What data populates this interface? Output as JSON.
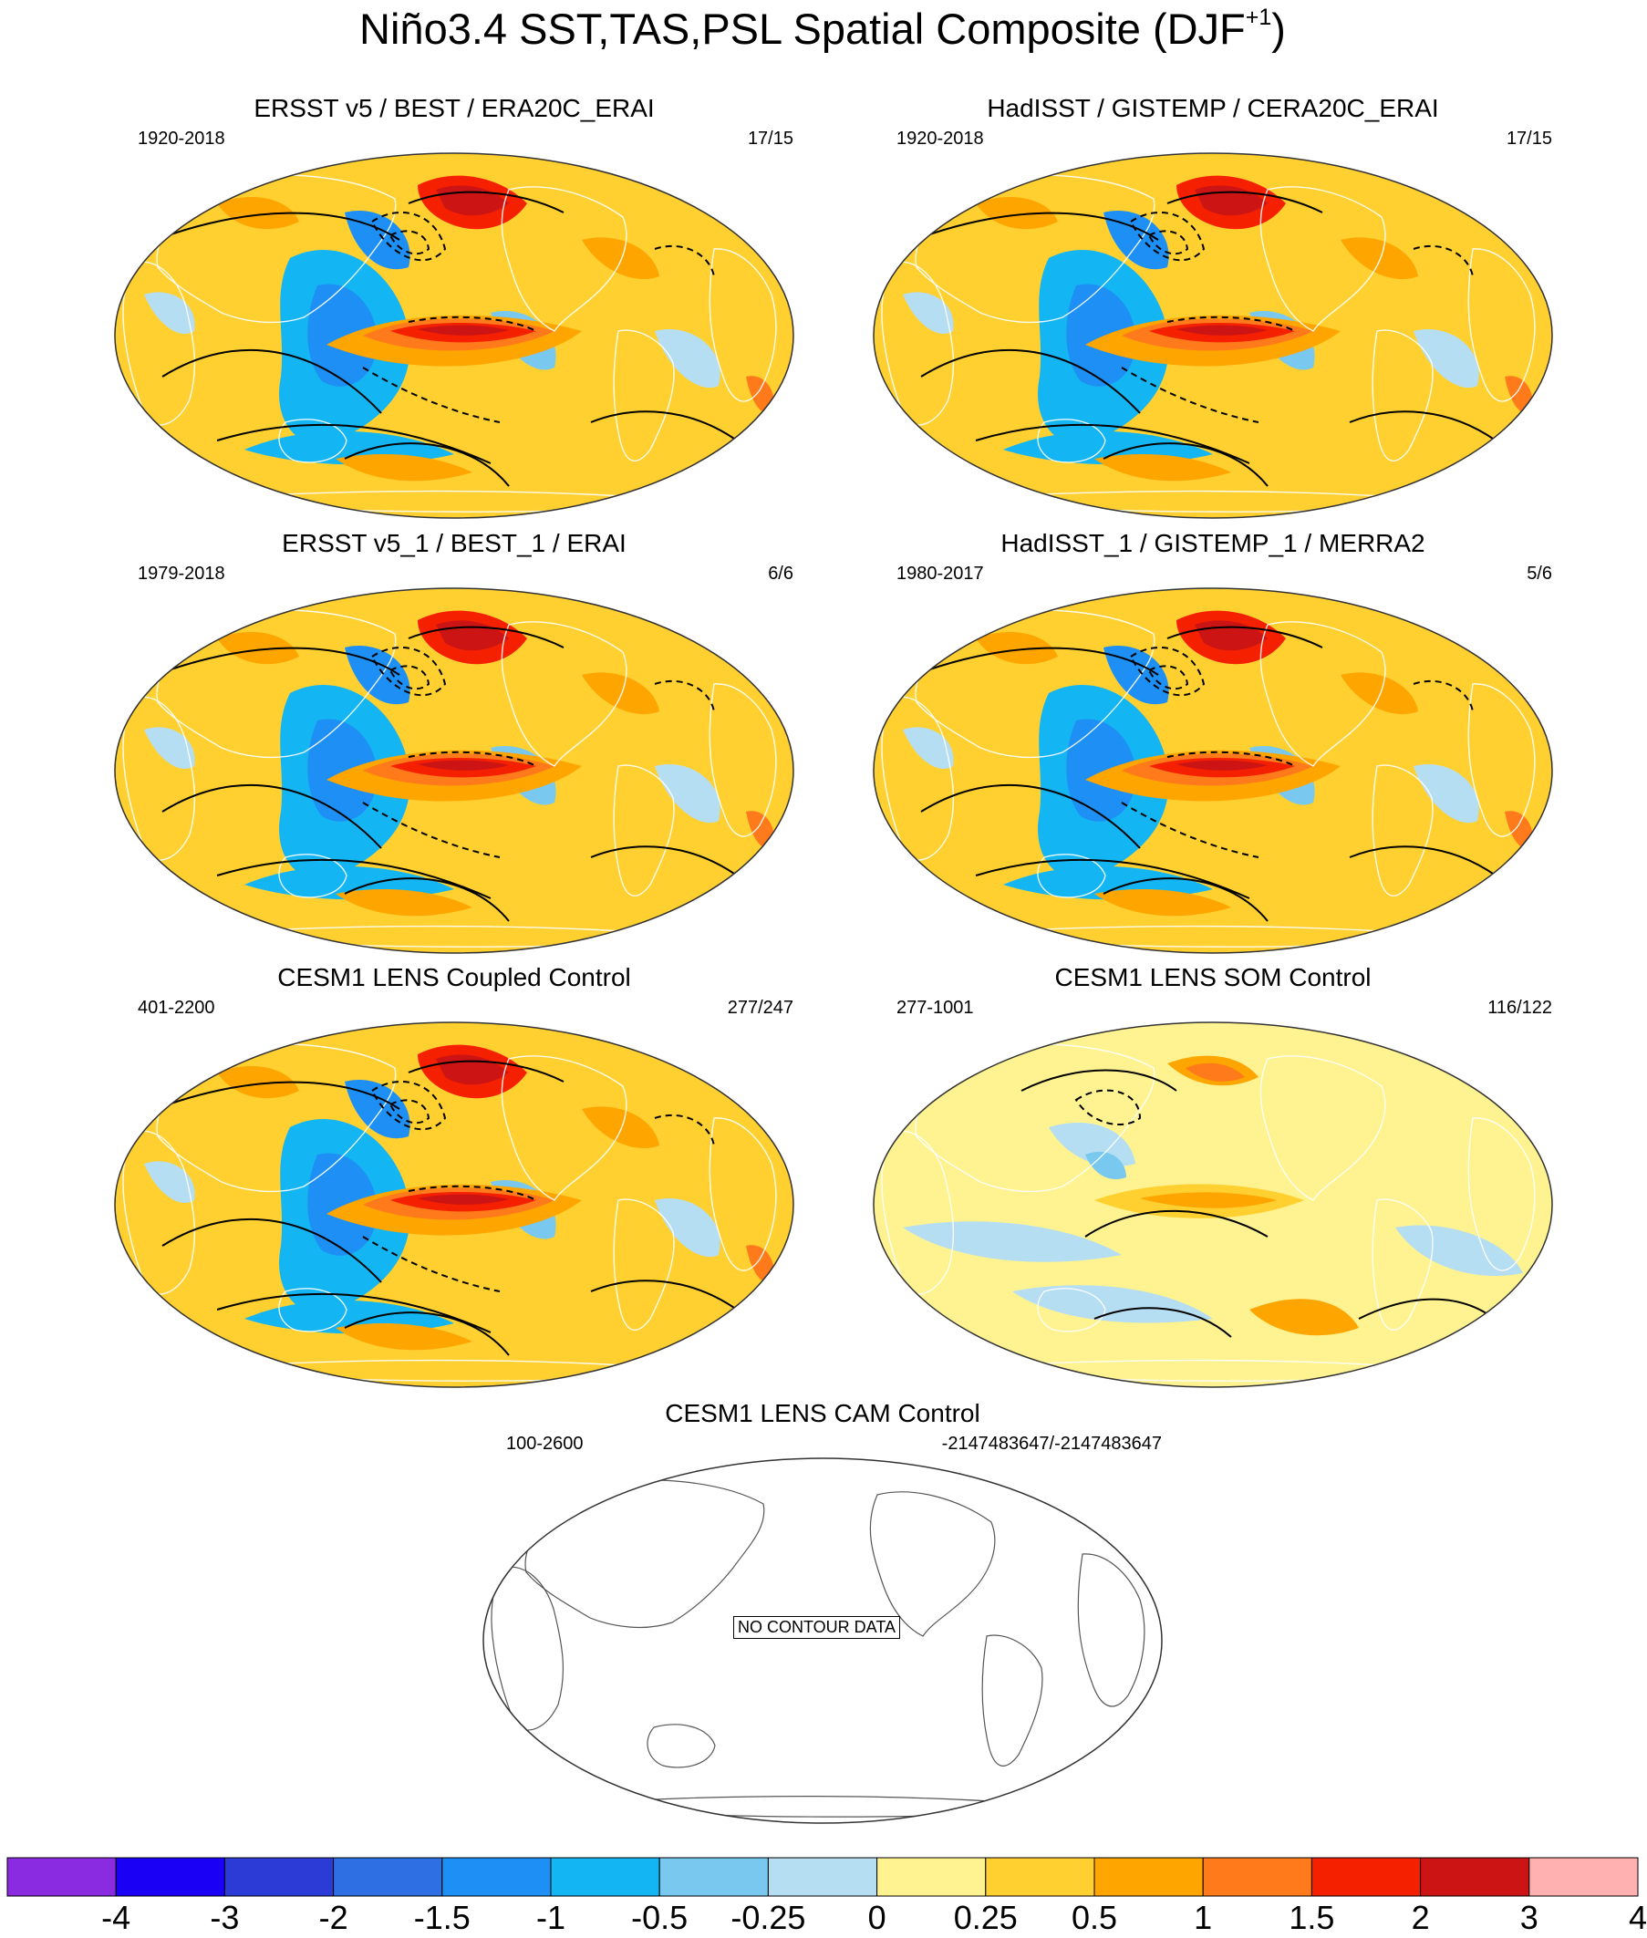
{
  "figure": {
    "title": "Niño3.4 SST,TAS,PSL Spatial Composite (DJF",
    "title_superscript": "+1",
    "title_close": ")"
  },
  "panels": [
    {
      "title": "ERSST v5 / BEST / ERA20C_ERAI",
      "years": "1920-2018",
      "count": "17/15",
      "style": "strong"
    },
    {
      "title": "HadISST / GISTEMP / CERA20C_ERAI",
      "years": "1920-2018",
      "count": "17/15",
      "style": "strong"
    },
    {
      "title": "ERSST v5_1 / BEST_1 / ERAI",
      "years": "1979-2018",
      "count": "6/6",
      "style": "strong"
    },
    {
      "title": "HadISST_1 / GISTEMP_1 / MERRA2",
      "years": "1980-2017",
      "count": "5/6",
      "style": "strong"
    },
    {
      "title": "CESM1 LENS Coupled Control",
      "years": "401-2200",
      "count": "277/247",
      "style": "strong"
    },
    {
      "title": "CESM1 LENS SOM Control",
      "years": "277-1001",
      "count": "116/122",
      "style": "weak"
    },
    {
      "title": "CESM1 LENS CAM Control",
      "years": "100-2600",
      "count": "-2147483647/-2147483647",
      "style": "empty",
      "message": "NO CONTOUR DATA"
    }
  ],
  "colorbar": {
    "colors": [
      "#8a2be2",
      "#1a00f5",
      "#2c3ad6",
      "#2f6fe4",
      "#1e8ff5",
      "#14b5f3",
      "#78c8f0",
      "#b5def2",
      "#fff391",
      "#ffd030",
      "#ffa500",
      "#ff7a1a",
      "#f52000",
      "#cc1414",
      "#ffb0b0"
    ],
    "labels": [
      "-4",
      "-3",
      "-2",
      "-1.5",
      "-1",
      "-0.5",
      "-0.25",
      "0",
      "0.25",
      "0.5",
      "1",
      "1.5",
      "2",
      "3",
      "4"
    ]
  },
  "palette": {
    "ocean": "#fff391",
    "outline": "#555555",
    "map_edge": "#333333"
  }
}
